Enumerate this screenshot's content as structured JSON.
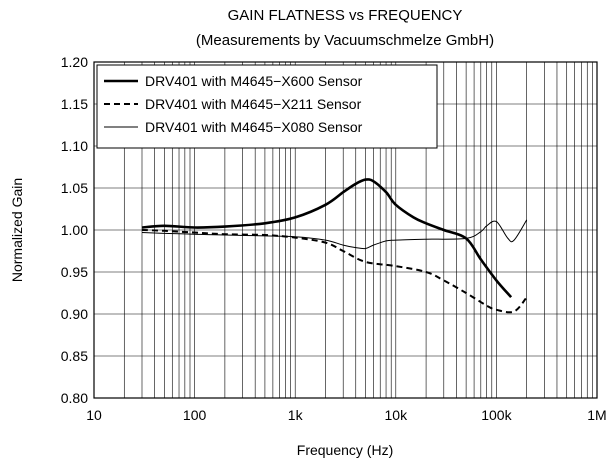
{
  "chart_data": {
    "type": "line",
    "title": "GAIN FLATNESS vs FREQUENCY",
    "subtitle": "(Measurements by Vacuumschmelze GmbH)",
    "xlabel": "Frequency (Hz)",
    "ylabel": "Normalized Gain",
    "xscale": "log",
    "xlim": [
      10,
      1000000
    ],
    "ylim": [
      0.8,
      1.2
    ],
    "x_ticks": [
      10,
      100,
      1000,
      10000,
      100000,
      1000000
    ],
    "x_tick_labels": [
      "10",
      "100",
      "1k",
      "10k",
      "100k",
      "1M"
    ],
    "y_ticks": [
      0.8,
      0.85,
      0.9,
      0.95,
      1.0,
      1.05,
      1.1,
      1.15,
      1.2
    ],
    "y_tick_labels": [
      "0.80",
      "0.85",
      "0.90",
      "0.95",
      "1.00",
      "1.05",
      "1.10",
      "1.15",
      "1.20"
    ],
    "grid": true,
    "legend_position": "top-left",
    "series": [
      {
        "name": "DRV401 with M4645−X600 Sensor",
        "style": "thick-solid",
        "color": "#000000",
        "x": [
          30,
          50,
          100,
          200,
          500,
          1000,
          2000,
          3000,
          4000,
          5000,
          6000,
          8000,
          10000,
          15000,
          20000,
          30000,
          50000,
          70000,
          100000,
          140000
        ],
        "y": [
          1.003,
          1.005,
          1.003,
          1.004,
          1.008,
          1.015,
          1.03,
          1.045,
          1.055,
          1.06,
          1.058,
          1.045,
          1.03,
          1.015,
          1.008,
          1.0,
          0.99,
          0.965,
          0.94,
          0.92
        ]
      },
      {
        "name": "DRV401 with M4645−X211 Sensor",
        "style": "dashed",
        "color": "#000000",
        "x": [
          30,
          50,
          100,
          200,
          500,
          1000,
          2000,
          3000,
          5000,
          10000,
          20000,
          30000,
          50000,
          80000,
          100000,
          150000,
          200000
        ],
        "y": [
          1.0,
          0.999,
          0.997,
          0.995,
          0.994,
          0.991,
          0.985,
          0.975,
          0.962,
          0.957,
          0.95,
          0.94,
          0.925,
          0.91,
          0.905,
          0.903,
          0.92
        ]
      },
      {
        "name": "DRV401 with M4645−X080 Sensor",
        "style": "thin-solid",
        "color": "#000000",
        "x": [
          30,
          50,
          100,
          200,
          500,
          1000,
          2000,
          3000,
          4000,
          5000,
          6000,
          8000,
          10000,
          20000,
          50000,
          70000,
          80000,
          100000,
          130000,
          150000,
          200000
        ],
        "y": [
          0.997,
          0.996,
          0.995,
          0.994,
          0.993,
          0.992,
          0.988,
          0.982,
          0.979,
          0.978,
          0.982,
          0.987,
          0.988,
          0.989,
          0.99,
          0.998,
          1.005,
          1.01,
          0.99,
          0.988,
          1.012
        ]
      }
    ]
  }
}
